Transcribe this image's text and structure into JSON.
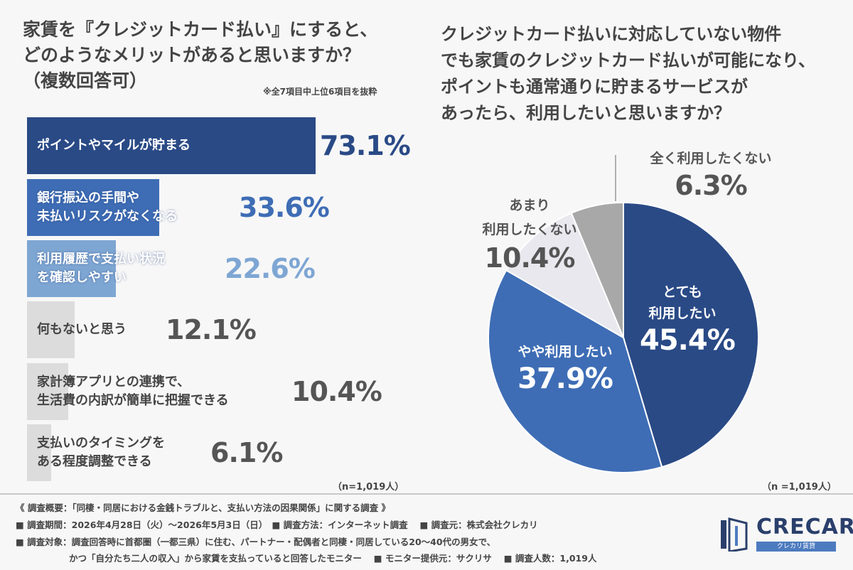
{
  "left": {
    "title_lines": [
      "家賃を『クレジットカード払い』にすると、",
      "どのようなメリットがあると思いますか？",
      "（複数回答可）"
    ],
    "note": "※全7項目中上位6項目を抜粋",
    "n_label": "（n=1,019人）"
  },
  "right": {
    "title_lines": [
      "クレジットカード払いに対応していない物件",
      "でも家賃のクレジットカード払いが可能になり、",
      "ポイントも通常通りに貯まるサービスが",
      "あったら、利用したいと思いますか？"
    ],
    "n_label": "（n =1,019人）"
  },
  "colors": {
    "dark_blue": "#2a4a86",
    "mid_blue": "#3e6db5",
    "light_blue": "#7ea6d3",
    "light_gray": "#e8e8ee",
    "gray": "#a8a8a8",
    "bar_gray": "#dcdcdc"
  },
  "chart_data": [
    {
      "type": "bar",
      "orientation": "horizontal",
      "categories": [
        "ポイントやマイルが貯まる",
        "銀行振込の手間や未払いリスクがなくなる",
        "利用履歴で支払い状況を確認しやすい",
        "何もないと思う",
        "家計簿アプリとの連携で、生活費の内訳が簡単に把握できる",
        "支払いのタイミングをある程度調整できる"
      ],
      "label_lines": [
        [
          "ポイントやマイルが貯まる"
        ],
        [
          "銀行振込の手間や",
          "未払いリスクがなくなる"
        ],
        [
          "利用履歴で支払い状況",
          "を確認しやすい"
        ],
        [
          "何もないと思う"
        ],
        [
          "家計簿アプリとの連携で、",
          "生活費の内訳が簡単に把握できる"
        ],
        [
          "支払いのタイミングを",
          "ある程度調整できる"
        ]
      ],
      "values": [
        73.1,
        33.6,
        22.6,
        12.1,
        10.4,
        6.1
      ],
      "value_labels": [
        "73.1%",
        "33.6%",
        "22.6%",
        "12.1%",
        "10.4%",
        "6.1%"
      ],
      "xlim": [
        0,
        100
      ]
    },
    {
      "type": "pie",
      "labels": [
        "とても利用したい",
        "やや利用したい",
        "あまり利用したくない",
        "全く利用したくない"
      ],
      "label_lines": [
        [
          "とても",
          "利用したい"
        ],
        [
          "やや利用したい"
        ],
        [
          "あまり",
          "利用したくない"
        ],
        [
          "全く利用したくない"
        ]
      ],
      "values": [
        45.4,
        37.9,
        10.4,
        6.3
      ],
      "value_labels": [
        "45.4%",
        "37.9%",
        "10.4%",
        "6.3%"
      ]
    }
  ],
  "footer": {
    "line1": "《 調査概要：「同棲・同居における金銭トラブルと、支払い方法の因果関係」に関する調査 》",
    "line2": "■ 調査期間：2026年4月28日（火）～2026年5月3日（日）　■ 調査方法：インターネット調査　 ■ 調査元：株式会社クレカリ",
    "line3": "■ 調査対象：調査回答時に首都圏（一都三県）に住む、パートナー・配偶者と同棲・同居している20～40代の男女で、",
    "line4": "　　　　　　かつ「自分たち二人の収入」から家賃を支払っていると回答したモニター　 ■ モニター提供元：サクリサ　 ■ 調査人数：1,019人"
  },
  "logo": {
    "name": "CRECARI",
    "sub": "クレカリ賃貸"
  }
}
